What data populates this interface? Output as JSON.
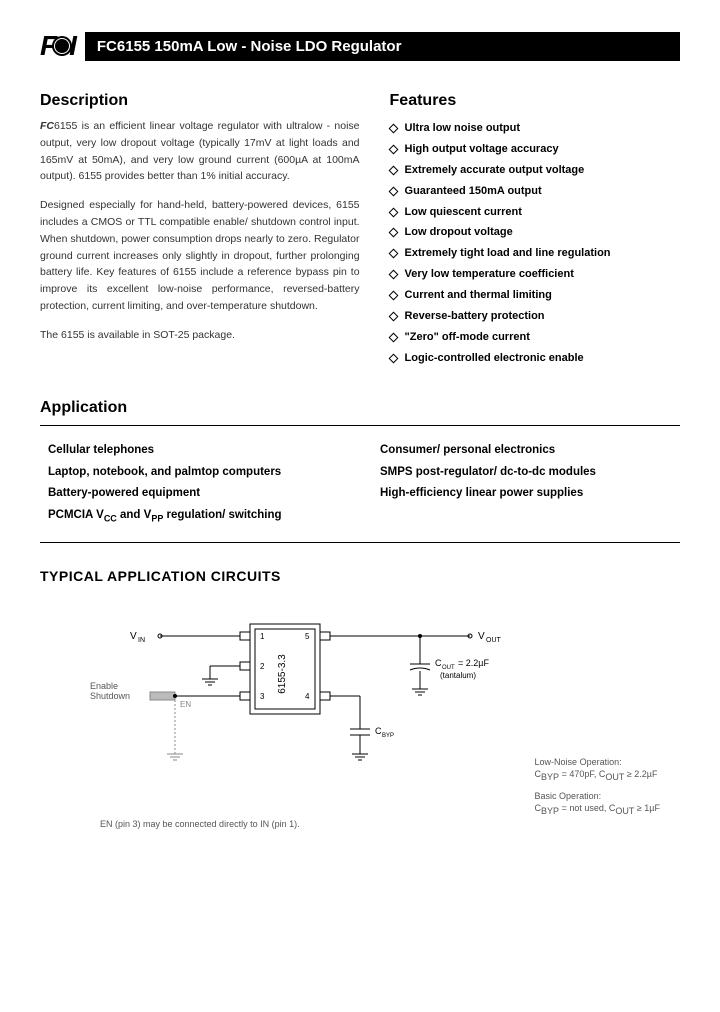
{
  "logo": {
    "left": "F",
    "right": "I"
  },
  "title": "FC6155 150mA Low - Noise LDO Regulator",
  "description": {
    "heading": "Description",
    "part_prefix": "FC",
    "para1_rest": "6155 is an efficient linear voltage regulator with ultralow - noise output, very low dropout voltage (typically 17mV at light loads and 165mV at 50mA), and very low ground current (600µA at 100mA output). 6155 provides better than 1% initial accuracy.",
    "para2": "Designed especially for hand-held, battery-powered devices, 6155 includes a CMOS or TTL compatible enable/ shutdown control input. When shutdown, power consumption drops nearly to zero. Regulator ground current increases only slightly in dropout, further prolonging battery life. Key features of 6155 include a reference bypass pin to improve its excellent low-noise performance, reversed-battery protection, current limiting, and over-temperature shutdown.",
    "para3": "The 6155 is available in SOT-25 package."
  },
  "features": {
    "heading": "Features",
    "items": [
      "Ultra low noise output",
      "High output voltage accuracy",
      "Extremely accurate output voltage",
      "Guaranteed 150mA output",
      "Low quiescent current",
      "Low dropout voltage",
      "Extremely tight load and line regulation",
      "Very low temperature coefficient",
      "Current and thermal limiting",
      "Reverse-battery protection",
      "\"Zero\" off-mode current",
      "Logic-controlled electronic enable"
    ]
  },
  "application": {
    "heading": "Application",
    "left_items": [
      "Cellular telephones",
      "Laptop, notebook, and palmtop computers",
      "Battery-powered equipment",
      "PCMCIA V<sub>CC</sub> and V<sub>PP</sub> regulation/ switching"
    ],
    "right_items": [
      "Consumer/ personal electronics",
      "SMPS post-regulator/ dc-to-dc modules",
      "High-efficiency linear power supplies"
    ]
  },
  "circuit": {
    "heading": "TYPICAL APPLICATION CIRCUITS",
    "vin": "V",
    "vin_sub": "IN",
    "vout": "V",
    "vout_sub": "OUT",
    "chip": "6155-3.3",
    "enable": "Enable",
    "shutdown": "Shutdown",
    "en": "EN",
    "cbyp": "C",
    "cbyp_sub": "BYP",
    "cout": "C",
    "cout_sub": "OUT",
    "cout_val": " = 2.2µF",
    "cout_type": "(tantalum)",
    "pins": {
      "p1": "1",
      "p2": "2",
      "p3": "3",
      "p4": "4",
      "p5": "5"
    },
    "en_note": "EN (pin 3) may be connected directly to IN (pin 1).",
    "low_noise_title": "Low-Noise Operation:",
    "low_noise_text": "C<sub>BYP</sub> = 470pF, C<sub>OUT</sub> ≥ 2.2µF",
    "basic_title": "Basic Operation:",
    "basic_text": "C<sub>BYP</sub> = not used, C<sub>OUT</sub> ≥ 1µF"
  },
  "colors": {
    "black": "#000000",
    "white": "#ffffff",
    "gray": "#808080"
  }
}
